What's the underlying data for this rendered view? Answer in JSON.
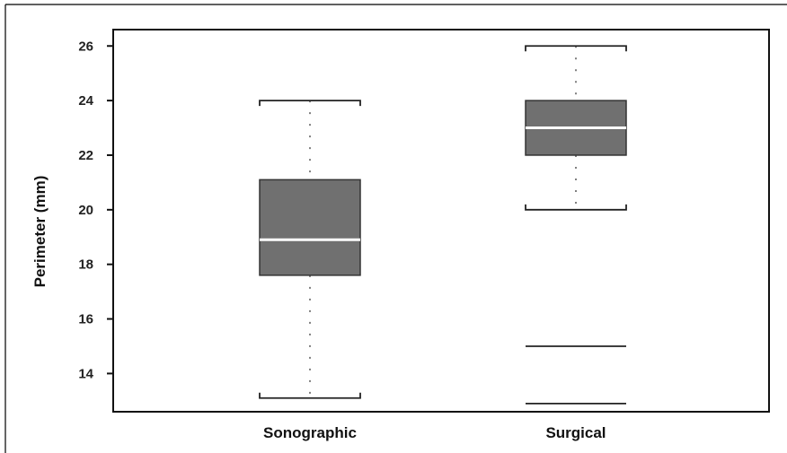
{
  "chart_data": {
    "type": "box",
    "title": "",
    "xlabel": "",
    "ylabel": "Perimeter (mm)",
    "ylim": [
      12.6,
      26.6
    ],
    "yticks": [
      14,
      16,
      18,
      20,
      22,
      24,
      26
    ],
    "grid": false,
    "categories": [
      "Sonographic",
      "Surgical"
    ],
    "boxes": [
      {
        "category": "Sonographic",
        "whisker_low": 13.1,
        "q1": 17.6,
        "median": 18.9,
        "q3": 21.1,
        "whisker_high": 24.0,
        "box_color": "#707070",
        "median_color": "#ffffff"
      },
      {
        "category": "Surgical",
        "whisker_low": 20.0,
        "q1": 22.0,
        "median": 23.0,
        "q3": 24.0,
        "whisker_high": 26.0,
        "box_color": "#707070",
        "median_color": "#ffffff"
      }
    ],
    "extra_lines": [
      {
        "category": "Surgical",
        "value": 15.0
      },
      {
        "category": "Surgical",
        "value": 12.9
      }
    ]
  }
}
